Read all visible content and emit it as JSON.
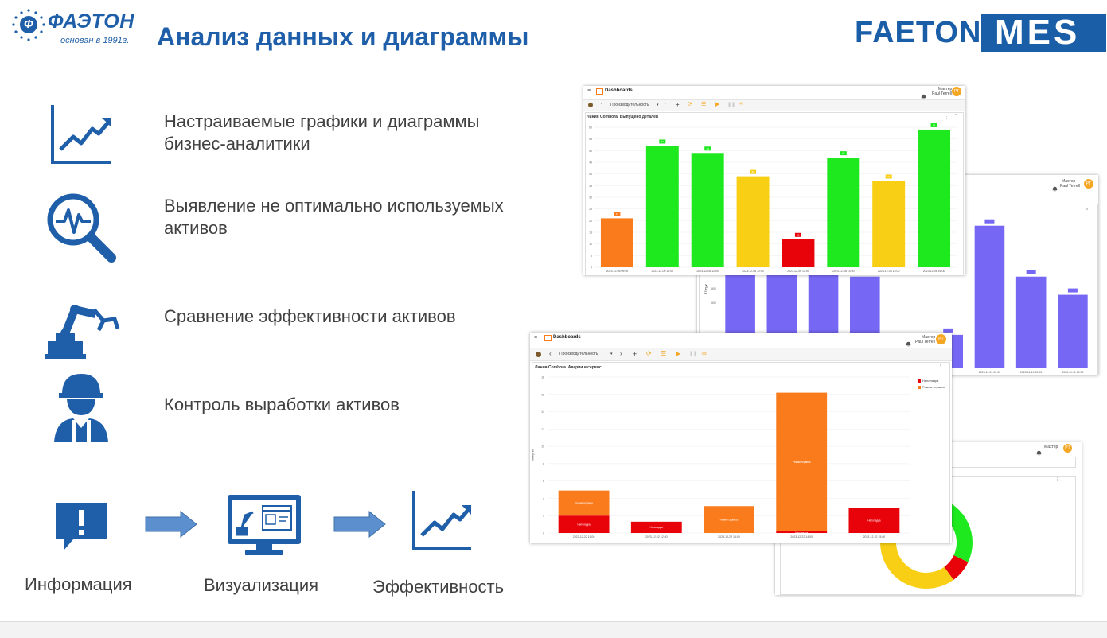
{
  "header": {
    "title": "Анализ данных и диаграммы",
    "logo_left_name": "ФАЭТОН",
    "logo_left_letter": "Ф",
    "logo_left_sub": "основан в 1991г.",
    "logo_right_faeton": "FAETON",
    "logo_right_mes": "MES"
  },
  "features": [
    {
      "icon": "line-chart-icon",
      "text": "Настраиваемые графики и диаграммы бизнес-аналитики"
    },
    {
      "icon": "magnifier-pulse-icon",
      "text": "Выявление не оптимально используемых активов"
    },
    {
      "icon": "robot-arm-icon",
      "text": "Сравнение эффективности активов"
    },
    {
      "icon": "worker-icon",
      "text": "Контроль выработки активов"
    }
  ],
  "flow": [
    {
      "icon": "info-bubble-icon",
      "label": "Информация"
    },
    {
      "icon": "monitor-icon",
      "label": "Визуализация"
    },
    {
      "icon": "line-chart-icon",
      "label": "Эффективность"
    }
  ],
  "colors": {
    "brand": "#1f5fa9",
    "green": "#1ee81e",
    "orange": "#f97b1c",
    "yellow": "#f8cf14",
    "red": "#e8020a",
    "purple": "#7668f4"
  },
  "screenshots": {
    "app_title": "Dashboards",
    "user_role": "Мастер",
    "user_name": "Paul Terrell",
    "user_initials": "PT",
    "dropdown_value": "Производительность",
    "front": {
      "chart_data": {
        "type": "bar",
        "title": "Линия Combora. Выпущено деталей",
        "categories": [
          "2023-12-06 09:00",
          "2023-12-06 10:00",
          "2023-12-06 12:00",
          "2023-12-06 12:00",
          "2023-12-06 13:00",
          "2023-12-06 14:00",
          "2023-12-06 15:00",
          "2023-12-06 16:00"
        ],
        "values": [
          21,
          52,
          49,
          39,
          12,
          47,
          37,
          59
        ],
        "colors": [
          "#f97b1c",
          "#1ee81e",
          "#1ee81e",
          "#f8cf14",
          "#e8020a",
          "#1ee81e",
          "#f8cf14",
          "#1ee81e"
        ],
        "ylim": [
          0,
          60
        ],
        "yticks": [
          "60",
          "55",
          "50",
          "45",
          "40",
          "35",
          "30",
          "25",
          "20",
          "15",
          "10",
          "5",
          "0"
        ]
      }
    },
    "middle": {
      "chart_data": {
        "type": "stacked_bar",
        "title": "Линия Combora. Аварии и сервис",
        "categories": [
          "2023-12-22 11:00",
          "2023-12-22 12:00",
          "2023-12-22 13:00",
          "2023-12-22 14:00",
          "2023-12-22 15:00"
        ],
        "series": [
          {
            "name": "Неполадка",
            "color": "#e8020a",
            "values": [
              2,
              1.3,
              0,
              0.2,
              2.9
            ]
          },
          {
            "name": "Режим сервиса",
            "color": "#f97b1c",
            "values": [
              2.9,
              0,
              3.1,
              16,
              0
            ]
          }
        ],
        "segment_labels": [
          [
            "Неполадка",
            "Режим сервиса"
          ],
          [
            "Неполадка",
            ""
          ],
          [
            "",
            "Режим сервиса"
          ],
          [
            "Неполадка",
            "Режим сервиса"
          ],
          [
            "Неполадка",
            ""
          ]
        ],
        "ylim": [
          0,
          18
        ],
        "yticks": [
          "18",
          "16",
          "14",
          "12",
          "10",
          "8",
          "6",
          "4",
          "2",
          "0"
        ],
        "ylabel": "Минуты"
      }
    },
    "back": {
      "chart_data": {
        "type": "bar",
        "categories": [
          "",
          "",
          "",
          "",
          "",
          "",
          "2023-11-09 00:00",
          "2023-11-10 00:00",
          "2023-11-11 00:00"
        ],
        "values": [
          1.35,
          1.5,
          1.5,
          1.25,
          0.02,
          0.45,
          1.95,
          1.25,
          1.0
        ],
        "yticks": [
          "1.2K",
          "1.0K",
          "800",
          "600"
        ],
        "ylabel": "Штук"
      }
    },
    "donut": {
      "chart_data": {
        "type": "pie",
        "values": [
          28,
          8,
          42,
          22
        ],
        "colors": [
          "#1ee81e",
          "#e8020a",
          "#f8cf14",
          "#f8cf14"
        ]
      }
    }
  }
}
